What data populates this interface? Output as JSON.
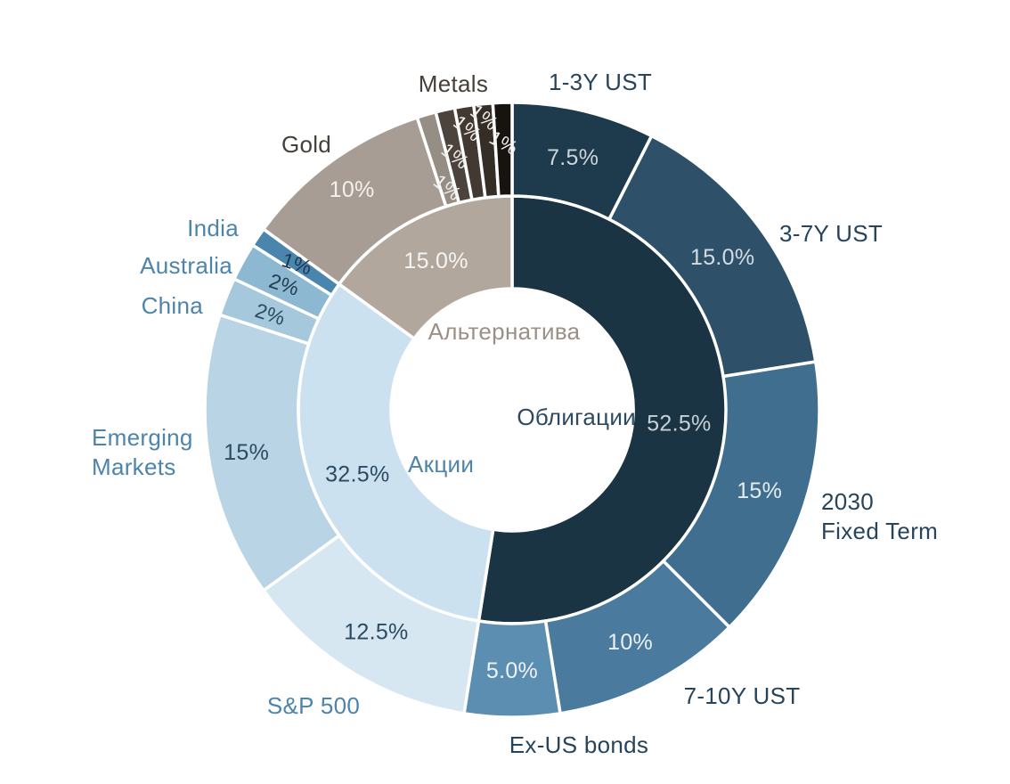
{
  "chart_data": {
    "type": "pie",
    "variant": "nested_donut",
    "units": "percent",
    "legend": "none",
    "background": "#ffffff",
    "slice_gap_color": "#ffffff",
    "rings": {
      "inner": [
        {
          "id": "bonds",
          "label": "Облигации",
          "value": 52.5,
          "value_label": "52.5%",
          "color": "#1b3443",
          "label_color": "#2c4a61",
          "value_color": "#c6d1d8"
        },
        {
          "id": "equities",
          "label": "Акции",
          "value": 32.5,
          "value_label": "32.5%",
          "color": "#cce1ef",
          "label_color": "#4d84ac",
          "value_color": "#2c4a61"
        },
        {
          "id": "alternative",
          "label": "Альтернатива",
          "value": 15.0,
          "value_label": "15.0%",
          "color": "#b1a79d",
          "label_color": "#9a9086",
          "value_color": "#f7f5f3"
        }
      ],
      "outer": [
        {
          "id": "ust-1-3y",
          "parent": "bonds",
          "label": "1-3Y UST",
          "value": 7.5,
          "value_label": "7.5%",
          "color": "#1e3b4e",
          "label_color": "#26445c",
          "value_color": "#ccd5da"
        },
        {
          "id": "ust-3-7y",
          "parent": "bonds",
          "label": "3-7Y UST",
          "value": 15.0,
          "value_label": "15.0%",
          "color": "#2e5169",
          "label_color": "#26445c",
          "value_color": "#d3dde3"
        },
        {
          "id": "term-2030",
          "parent": "bonds",
          "label": "2030 Fixed Term",
          "value": 15.0,
          "value_label": "15%",
          "color": "#3f6e8e",
          "label_color": "#26445c",
          "value_color": "#e6edf1"
        },
        {
          "id": "ust-7-10y",
          "parent": "bonds",
          "label": "7-10Y UST",
          "value": 10.0,
          "value_label": "10%",
          "color": "#4a7b9e",
          "label_color": "#26445c",
          "value_color": "#eaf0f4"
        },
        {
          "id": "ex-us-bonds",
          "parent": "bonds",
          "label": "Ex-US bonds",
          "value": 5.0,
          "value_label": "5.0%",
          "color": "#5c8eb2",
          "label_color": "#26445c",
          "value_color": "#eef3f6"
        },
        {
          "id": "sp-500",
          "parent": "equities",
          "label": "S&P 500",
          "value": 12.5,
          "value_label": "12.5%",
          "color": "#d7e7f2",
          "label_color": "#4d84ac",
          "value_color": "#2c4a61"
        },
        {
          "id": "emerging-markets",
          "parent": "equities",
          "label": "Emerging Markets",
          "value": 15.0,
          "value_label": "15%",
          "color": "#b9d4e5",
          "label_color": "#4d84ac",
          "value_color": "#2c4a61"
        },
        {
          "id": "china",
          "parent": "equities",
          "label": "China",
          "value": 2.0,
          "value_label": "2%",
          "color": "#a5c8dc",
          "label_color": "#4d84ac",
          "value_color": "#2c4a61"
        },
        {
          "id": "australia",
          "parent": "equities",
          "label": "Australia",
          "value": 2.0,
          "value_label": "2%",
          "color": "#8cb8d1",
          "label_color": "#4d84ac",
          "value_color": "#243c50"
        },
        {
          "id": "india",
          "parent": "equities",
          "label": "India",
          "value": 1.0,
          "value_label": "1%",
          "color": "#4a85ad",
          "label_color": "#4d84ac",
          "value_color": "#1f3850"
        },
        {
          "id": "gold",
          "parent": "alternative",
          "label": "Gold",
          "value": 10.0,
          "value_label": "10%",
          "color": "#a79d94",
          "label_color": "#46403a",
          "value_color": "#f4f1ee"
        },
        {
          "id": "metals-1",
          "parent": "alternative",
          "label": "",
          "value": 1.0,
          "value_label": "1%",
          "color": "#968d84",
          "label_color": "#46403a",
          "value_color": "#f1efec"
        },
        {
          "id": "metals-2",
          "parent": "alternative",
          "label": "",
          "value": 1.0,
          "value_label": "1%",
          "color": "#4c443c",
          "label_color": "#46403a",
          "value_color": "#f1efec"
        },
        {
          "id": "metals-3",
          "parent": "alternative",
          "label": "",
          "value": 1.0,
          "value_label": "1%",
          "color": "#423a32",
          "label_color": "#46403a",
          "value_color": "#f1efec"
        },
        {
          "id": "metals-4",
          "parent": "alternative",
          "label": "",
          "value": 1.0,
          "value_label": "1%",
          "color": "#352e27",
          "label_color": "#46403a",
          "value_color": "#f1efec"
        },
        {
          "id": "metals-5",
          "parent": "alternative",
          "label": "",
          "value": 1.0,
          "value_label": "1%",
          "color": "#17130f",
          "label_color": "#46403a",
          "value_color": "#f1efec"
        }
      ]
    },
    "annotations": [
      {
        "id": "metals-group-label",
        "text": "Metals",
        "color": "#46403a"
      }
    ]
  }
}
